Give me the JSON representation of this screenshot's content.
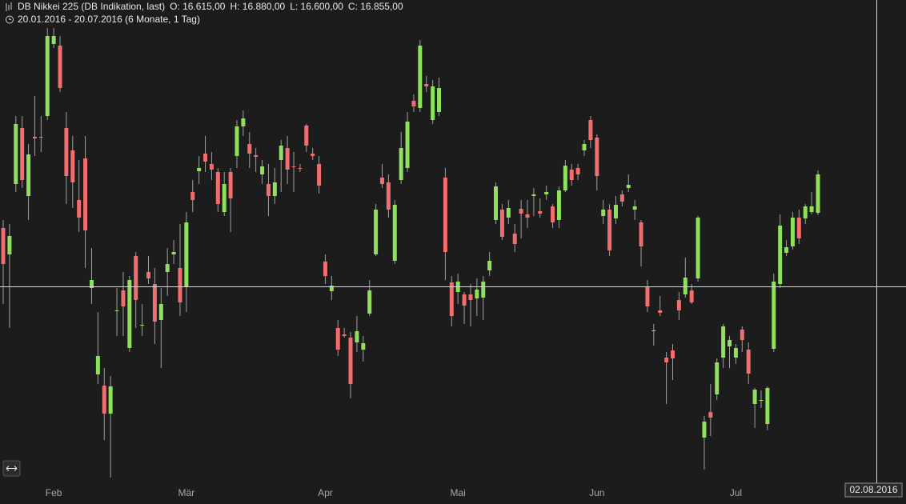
{
  "chart_data": {
    "type": "candlestick",
    "title": "DB Nikkei 225 (DB Indikation, last)",
    "ohlc_labels": [
      "O: 16.615,00",
      "H: 16.880,00",
      "L: 16.600,00",
      "C: 16.855,00"
    ],
    "subtitle": "20.01.2016 - 20.07.2016 (6 Monate, 1 Tag)",
    "crosshair_label": "02.08.2016",
    "up_color": "#8fe05a",
    "down_color": "#f26d6d",
    "wick_color": "#a0a0a0",
    "ylim": [
      14850,
      17850
    ],
    "categories": [
      null,
      null,
      null,
      null,
      null,
      null,
      null,
      null,
      "Feb",
      null,
      null,
      null,
      null,
      null,
      null,
      null,
      null,
      null,
      null,
      null,
      null,
      null,
      null,
      null,
      null,
      null,
      null,
      null,
      null,
      "Mär",
      null,
      null,
      null,
      null,
      null,
      null,
      null,
      null,
      null,
      null,
      null,
      null,
      null,
      null,
      null,
      null,
      null,
      null,
      null,
      null,
      null,
      "Apr",
      null,
      null,
      null,
      null,
      null,
      null,
      null,
      null,
      null,
      null,
      null,
      null,
      null,
      null,
      null,
      null,
      null,
      null,
      null,
      null,
      "Mai",
      null,
      null,
      null,
      null,
      null,
      null,
      null,
      null,
      null,
      null,
      null,
      null,
      null,
      null,
      null,
      null,
      null,
      null,
      null,
      null,
      null,
      "Jun",
      null,
      null,
      null,
      null,
      null,
      null,
      null,
      null,
      null,
      null,
      null,
      null,
      null,
      null,
      null,
      null,
      null,
      null,
      null,
      null,
      null,
      "Jul",
      null,
      null,
      null,
      null,
      null,
      null,
      null,
      null,
      null,
      null,
      null,
      null,
      null
    ],
    "open": [
      16520,
      16355,
      16795,
      17145,
      16720,
      17090,
      17090,
      17220,
      17670,
      17660,
      17145,
      17005,
      16695,
      16955,
      16145,
      15605,
      15535,
      15360,
      16005,
      16130,
      15770,
      16345,
      15915,
      16245,
      16170,
      15945,
      16245,
      16355,
      16270,
      16155,
      16745,
      16875,
      16985,
      16920,
      16870,
      16620,
      16870,
      16970,
      17155,
      17045,
      16975,
      16855,
      16795,
      16720,
      16945,
      17020,
      16905,
      16895,
      17160,
      16985,
      16920,
      16310,
      16125,
      15895,
      15855,
      15835,
      15805,
      15760,
      15985,
      16355,
      16835,
      16805,
      16315,
      16820,
      16895,
      17315,
      17270,
      17420,
      17195,
      17245,
      16835,
      16180,
      16120,
      16105,
      16105,
      16080,
      16085,
      16255,
      16570,
      16635,
      16585,
      16485,
      16640,
      16605,
      16720,
      16625,
      16730,
      16655,
      16570,
      16755,
      16885,
      16895,
      17005,
      17195,
      17085,
      16595,
      16635,
      16580,
      16730,
      16770,
      16635,
      16555,
      16155,
      15875,
      16005,
      15710,
      15755,
      16070,
      16105,
      16130,
      16205,
      15210,
      15370,
      15480,
      15710,
      15780,
      15710,
      15885,
      15760,
      15420,
      15445,
      15295,
      15765,
      16170,
      16365,
      16405,
      16585,
      16580,
      16620,
      16615
    ],
    "high": [
      16570,
      16545,
      17220,
      17220,
      17045,
      17345,
      17220,
      17770,
      17770,
      17720,
      17245,
      17095,
      16945,
      17095,
      16395,
      15995,
      15645,
      15595,
      16145,
      16245,
      16220,
      16370,
      16045,
      16345,
      16270,
      16145,
      16395,
      16445,
      16545,
      16620,
      16820,
      16970,
      17095,
      16995,
      16895,
      16870,
      16895,
      17195,
      17255,
      17120,
      17020,
      16945,
      16920,
      16895,
      17070,
      17095,
      16995,
      16920,
      17170,
      17020,
      16970,
      16355,
      16220,
      15945,
      15895,
      15870,
      15970,
      15845,
      16195,
      16670,
      16920,
      16855,
      16695,
      17120,
      17245,
      17355,
      17695,
      17470,
      17445,
      17460,
      16895,
      16220,
      16235,
      16120,
      16170,
      16205,
      16220,
      16370,
      16805,
      16670,
      16695,
      16545,
      16695,
      16695,
      16770,
      16705,
      16785,
      16670,
      16780,
      16945,
      16920,
      16920,
      17070,
      17220,
      17105,
      16695,
      16670,
      16720,
      16755,
      16855,
      16695,
      16570,
      16195,
      15920,
      16095,
      15745,
      15795,
      16120,
      16335,
      16170,
      16595,
      15345,
      15545,
      15705,
      15920,
      15845,
      15795,
      15905,
      15805,
      15520,
      15505,
      15530,
      16235,
      16605,
      16445,
      16620,
      16635,
      16670,
      16745,
      16880
    ],
    "low": [
      16045,
      15895,
      16745,
      16770,
      16570,
      16970,
      16995,
      17195,
      17645,
      17370,
      16670,
      16645,
      16495,
      16270,
      16045,
      15545,
      15195,
      14960,
      15845,
      15845,
      15745,
      15895,
      15845,
      16170,
      15795,
      15645,
      16095,
      16295,
      15970,
      15995,
      16620,
      16795,
      16870,
      16820,
      16620,
      16595,
      16495,
      16895,
      17095,
      16895,
      16870,
      16795,
      16595,
      16670,
      16745,
      16795,
      16745,
      16870,
      16995,
      16945,
      16735,
      16170,
      16070,
      15720,
      15835,
      15455,
      15745,
      15685,
      15970,
      16345,
      16770,
      16585,
      16295,
      16795,
      16870,
      17245,
      17245,
      17370,
      17170,
      17220,
      16195,
      15905,
      16045,
      15920,
      15905,
      15970,
      15945,
      16220,
      16545,
      16445,
      16545,
      16370,
      16455,
      16520,
      16595,
      16585,
      16695,
      16520,
      16520,
      16745,
      16785,
      16820,
      16970,
      17020,
      16755,
      16545,
      16345,
      16545,
      16655,
      16745,
      16570,
      16280,
      15995,
      15785,
      15970,
      15420,
      15570,
      15945,
      16085,
      16045,
      16185,
      15010,
      15220,
      15445,
      15645,
      15645,
      15670,
      15745,
      15545,
      15270,
      15395,
      15255,
      15745,
      16145,
      16345,
      16385,
      16420,
      16545,
      16605,
      16600
    ],
    "close": [
      16295,
      16470,
      17170,
      16820,
      16980,
      17080,
      17085,
      17720,
      17720,
      17395,
      16845,
      16805,
      16585,
      16505,
      16195,
      15720,
      15360,
      15530,
      16005,
      16030,
      16195,
      16070,
      15915,
      16205,
      15935,
      16045,
      16295,
      16370,
      16055,
      16555,
      16695,
      16895,
      16935,
      16885,
      16670,
      16795,
      16705,
      17155,
      17205,
      16985,
      16965,
      16905,
      16720,
      16805,
      17035,
      16885,
      16900,
      16890,
      17035,
      16970,
      16785,
      16220,
      16160,
      15760,
      15845,
      15545,
      15875,
      15800,
      16130,
      16635,
      16795,
      16635,
      16665,
      17020,
      17185,
      17280,
      17660,
      17405,
      17405,
      17395,
      16370,
      15970,
      16185,
      16035,
      16070,
      16135,
      16185,
      16315,
      16780,
      16465,
      16645,
      16420,
      16610,
      16585,
      16730,
      16610,
      16745,
      16555,
      16755,
      16910,
      16820,
      16855,
      17045,
      17070,
      16845,
      16635,
      16380,
      16665,
      16685,
      16790,
      16655,
      16405,
      16030,
      15880,
      15990,
      15680,
      15705,
      16005,
      16210,
      16055,
      16585,
      15310,
      15335,
      15680,
      15905,
      15820,
      15770,
      15820,
      15610,
      15510,
      15445,
      15520,
      16185,
      16535,
      16400,
      16585,
      16455,
      16655,
      16655,
      16855
    ]
  }
}
